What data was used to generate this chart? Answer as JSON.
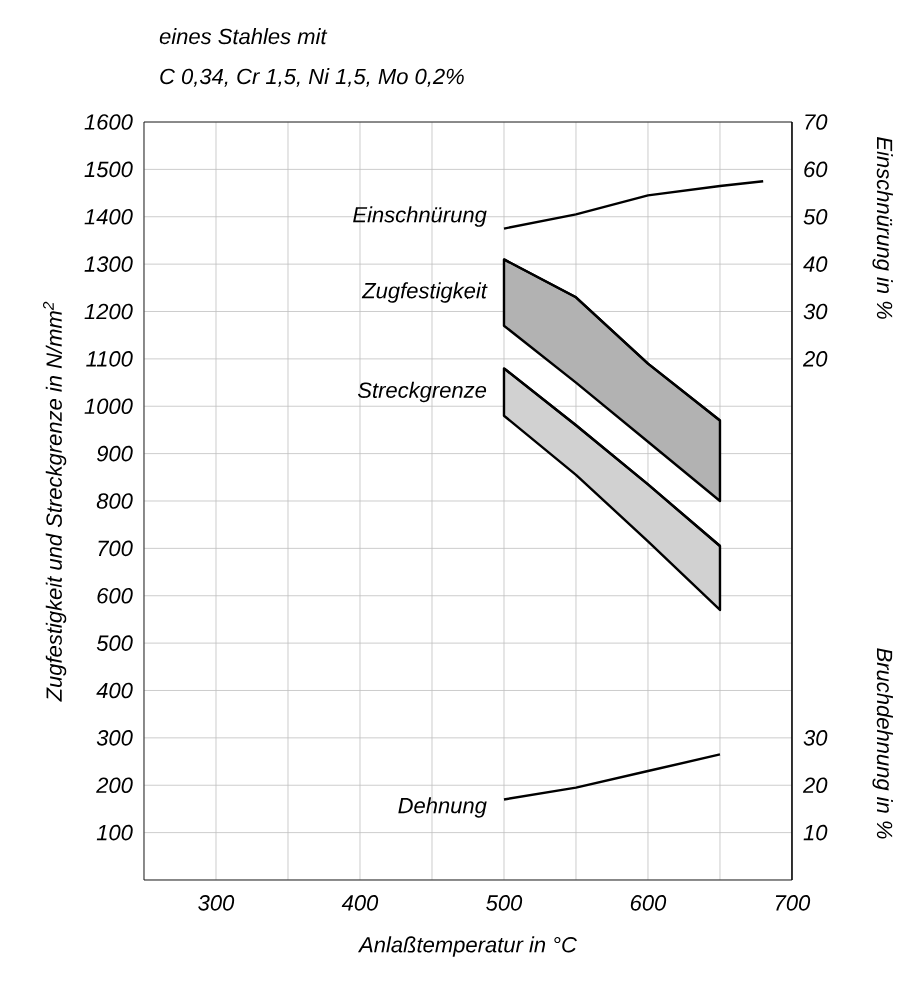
{
  "chart_data": {
    "type": "line",
    "title": "eines Stahles mit",
    "subtitle": "C 0,34, Cr 1,5, Ni 1,5, Mo 0,2%",
    "xlabel": "Anlaßtemperatur in °C",
    "ylabel": "Zugfestigkeit und Streckgrenze in N/mm$^{2}$",
    "y2label": "Einschnürung in %",
    "y3label": "Bruchdehnung in %",
    "xlim": [
      250,
      700
    ],
    "xticks": [
      {
        "value": 250,
        "label": null
      },
      300,
      {
        "value": 350,
        "label": null
      },
      400,
      {
        "value": 450,
        "label": null
      },
      500,
      {
        "value": 550,
        "label": null
      },
      600,
      {
        "value": 650,
        "label": null
      },
      700
    ],
    "ylim": [
      0,
      1600
    ],
    "yticks": [
      {
        "value": 0,
        "label": null
      },
      100,
      200,
      300,
      400,
      500,
      600,
      700,
      800,
      900,
      1000,
      1100,
      1200,
      1300,
      1400,
      1500,
      1600
    ],
    "y2lim": [
      -90,
      70
    ],
    "y2ticks": [
      20,
      30,
      40,
      50,
      60,
      70
    ],
    "y3lim": [
      0,
      160
    ],
    "y3ticks": [
      10,
      20,
      30
    ],
    "grid": true,
    "marker": "none",
    "line_style": "solid",
    "series": [
      {
        "name": "Einschnürung",
        "axis": "y2",
        "color": "#000000",
        "x": [
          500,
          550,
          600,
          650,
          680
        ],
        "values": [
          47.5,
          50.5,
          54.5,
          56.5,
          57.5
        ]
      },
      {
        "name": "Zugfestigkeit",
        "type": "line",
        "color": "#000000",
        "x": [
          500,
          550,
          600,
          650
        ],
        "values": [
          1310,
          1230,
          1090,
          970
        ],
        "lower": [
          1170,
          1050,
          925,
          800
        ],
        "upper": [
          1310,
          1230,
          1090,
          970
        ]
      },
      {
        "name": "Streckgrenze",
        "type": "line",
        "color": "#000000",
        "x": [
          500,
          550,
          600,
          650
        ],
        "values": [
          1080,
          960,
          835,
          705
        ],
        "lower": [
          980,
          855,
          715,
          570
        ],
        "upper": [
          1080,
          960,
          835,
          705
        ]
      },
      {
        "name": "Dehnung",
        "axis": "y3",
        "color": "#000000",
        "x": [
          500,
          550,
          600,
          650
        ],
        "values": [
          17,
          19.5,
          23,
          26.5
        ]
      }
    ]
  }
}
